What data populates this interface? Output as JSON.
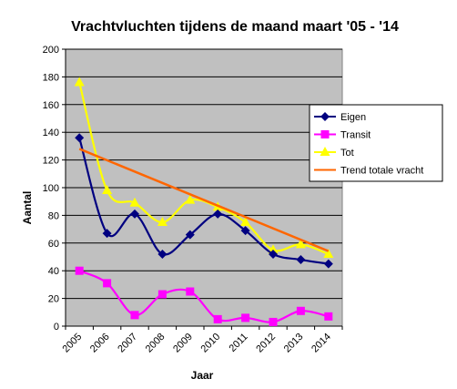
{
  "colors": {
    "plot_bg": "#c0c0c0",
    "eigen": "#000080",
    "transit": "#ff00ff",
    "tot": "#ffff00",
    "trend": "#ff6600"
  },
  "chart_data": {
    "type": "line",
    "title": "Vrachtvluchten tijdens de maand maart '05 - '14",
    "xlabel": "Jaar",
    "ylabel": "Aantal",
    "ylim": [
      0,
      200
    ],
    "yticks": [
      "0",
      "20",
      "40",
      "60",
      "80",
      "100",
      "120",
      "140",
      "160",
      "180",
      "200"
    ],
    "categories": [
      "2005",
      "2006",
      "2007",
      "2008",
      "2009",
      "2010",
      "2011",
      "2012",
      "2013",
      "2014"
    ],
    "grid": true,
    "legend_position": "right",
    "series": [
      {
        "name": "Eigen",
        "marker": "diamond",
        "smooth": true,
        "values": [
          136,
          67,
          81,
          52,
          66,
          81,
          69,
          52,
          48,
          45
        ]
      },
      {
        "name": "Transit",
        "marker": "square",
        "smooth": true,
        "values": [
          40,
          31,
          8,
          23,
          25,
          5,
          6,
          3,
          11,
          7
        ]
      },
      {
        "name": "Tot",
        "marker": "triangle",
        "smooth": true,
        "values": [
          176,
          98,
          89,
          75,
          91,
          86,
          75,
          55,
          59,
          52
        ]
      },
      {
        "name": "Trend totale vracht",
        "marker": "none",
        "smooth": false,
        "trend": true,
        "values": [
          128,
          119.8,
          111.6,
          103.4,
          95.2,
          87.0,
          78.8,
          70.6,
          62.4,
          54.2
        ]
      }
    ]
  }
}
